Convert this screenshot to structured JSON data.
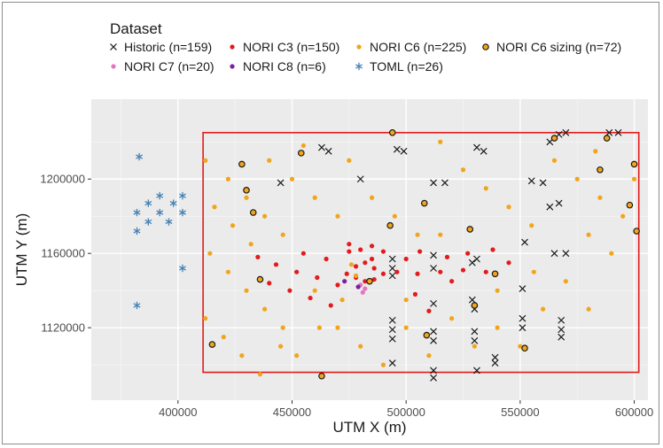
{
  "chart_data": {
    "type": "scatter",
    "legend_title": "Dataset",
    "legend_position": "top",
    "xlabel": "UTM X (m)",
    "ylabel": "UTM Y (m)",
    "xlim": [
      362000,
      606000
    ],
    "ylim": [
      1081000,
      1243000
    ],
    "x_ticks": [
      400000,
      450000,
      500000,
      550000,
      600000
    ],
    "y_ticks": [
      1120000,
      1160000,
      1200000
    ],
    "x_tick_labels": [
      "400000",
      "450000",
      "500000",
      "550000",
      "600000"
    ],
    "y_tick_labels": [
      "1120000",
      "1160000",
      "1200000"
    ],
    "grid": true,
    "boundary_rect": {
      "x": [
        411000,
        602000
      ],
      "y": [
        1096000,
        1225000
      ],
      "color": "#e41a1c"
    },
    "series": [
      {
        "name": "Historic (n=159)",
        "marker": "x",
        "color": "#1a1a1a",
        "points": [
          [
            480000,
            1200000
          ],
          [
            496000,
            1216000
          ],
          [
            499000,
            1215000
          ],
          [
            531000,
            1217000
          ],
          [
            534000,
            1215000
          ],
          [
            512000,
            1198000
          ],
          [
            517000,
            1198000
          ],
          [
            555000,
            1199000
          ],
          [
            560000,
            1198000
          ],
          [
            445000,
            1198000
          ],
          [
            463000,
            1217000
          ],
          [
            466000,
            1215000
          ],
          [
            563000,
            1220000
          ],
          [
            567000,
            1224000
          ],
          [
            570000,
            1225000
          ],
          [
            589000,
            1225000
          ],
          [
            593000,
            1225000
          ],
          [
            563000,
            1185000
          ],
          [
            567000,
            1187000
          ],
          [
            565000,
            1160000
          ],
          [
            570000,
            1160000
          ],
          [
            552000,
            1166000
          ],
          [
            551000,
            1141000
          ],
          [
            551000,
            1125000
          ],
          [
            551000,
            1120000
          ],
          [
            568000,
            1124000
          ],
          [
            568000,
            1119000
          ],
          [
            568000,
            1115000
          ],
          [
            531000,
            1157000
          ],
          [
            529000,
            1155000
          ],
          [
            529000,
            1135000
          ],
          [
            530000,
            1130000
          ],
          [
            530000,
            1118000
          ],
          [
            530000,
            1113000
          ],
          [
            539000,
            1104000
          ],
          [
            539000,
            1101000
          ],
          [
            531000,
            1097000
          ],
          [
            512000,
            1159000
          ],
          [
            512000,
            1152000
          ],
          [
            512000,
            1133000
          ],
          [
            512000,
            1118000
          ],
          [
            512000,
            1113000
          ],
          [
            512000,
            1097000
          ],
          [
            512000,
            1093000
          ],
          [
            494000,
            1157000
          ],
          [
            494000,
            1152000
          ],
          [
            494000,
            1148000
          ],
          [
            494000,
            1124000
          ],
          [
            494000,
            1119000
          ],
          [
            494000,
            1114000
          ],
          [
            494000,
            1101000
          ]
        ]
      },
      {
        "name": "NORI C3 (n=150)",
        "marker": "dot",
        "color": "#e41a1c",
        "points": [
          [
            435000,
            1158000
          ],
          [
            443000,
            1154000
          ],
          [
            452000,
            1150000
          ],
          [
            461000,
            1147000
          ],
          [
            470000,
            1143000
          ],
          [
            440000,
            1144000
          ],
          [
            449000,
            1140000
          ],
          [
            458000,
            1136000
          ],
          [
            467000,
            1132000
          ],
          [
            455000,
            1160000
          ],
          [
            465000,
            1157000
          ],
          [
            475000,
            1161000
          ],
          [
            485000,
            1157000
          ],
          [
            490000,
            1161000
          ],
          [
            500000,
            1157000
          ],
          [
            506000,
            1161000
          ],
          [
            518000,
            1158000
          ],
          [
            527000,
            1160000
          ],
          [
            538000,
            1162000
          ],
          [
            545000,
            1155000
          ],
          [
            535000,
            1150000
          ],
          [
            525000,
            1151000
          ],
          [
            515000,
            1150000
          ],
          [
            505000,
            1149000
          ],
          [
            496000,
            1150000
          ],
          [
            504000,
            1138000
          ],
          [
            510000,
            1129000
          ],
          [
            520000,
            1145000
          ],
          [
            475000,
            1165000
          ],
          [
            480000,
            1162000
          ],
          [
            485000,
            1164000
          ],
          [
            478000,
            1153000
          ],
          [
            482000,
            1155000
          ],
          [
            486000,
            1152000
          ],
          [
            474000,
            1149000
          ],
          [
            478000,
            1147000
          ],
          [
            482000,
            1145000
          ],
          [
            486000,
            1146000
          ],
          [
            490000,
            1149000
          ]
        ]
      },
      {
        "name": "NORI C6 (n=225)",
        "marker": "dot",
        "color": "#f2a51a",
        "points": [
          [
            412000,
            1210000
          ],
          [
            422000,
            1200000
          ],
          [
            430000,
            1190000
          ],
          [
            438000,
            1180000
          ],
          [
            446000,
            1170000
          ],
          [
            416000,
            1185000
          ],
          [
            424000,
            1175000
          ],
          [
            432000,
            1165000
          ],
          [
            414000,
            1160000
          ],
          [
            422000,
            1150000
          ],
          [
            430000,
            1140000
          ],
          [
            438000,
            1130000
          ],
          [
            446000,
            1120000
          ],
          [
            412000,
            1125000
          ],
          [
            420000,
            1115000
          ],
          [
            428000,
            1105000
          ],
          [
            436000,
            1095000
          ],
          [
            440000,
            1210000
          ],
          [
            450000,
            1200000
          ],
          [
            460000,
            1190000
          ],
          [
            470000,
            1180000
          ],
          [
            455000,
            1218000
          ],
          [
            475000,
            1210000
          ],
          [
            485000,
            1190000
          ],
          [
            495000,
            1180000
          ],
          [
            505000,
            1170000
          ],
          [
            515000,
            1220000
          ],
          [
            525000,
            1205000
          ],
          [
            535000,
            1195000
          ],
          [
            545000,
            1185000
          ],
          [
            555000,
            1175000
          ],
          [
            565000,
            1210000
          ],
          [
            575000,
            1200000
          ],
          [
            585000,
            1190000
          ],
          [
            595000,
            1180000
          ],
          [
            580000,
            1170000
          ],
          [
            590000,
            1160000
          ],
          [
            600000,
            1200000
          ],
          [
            470000,
            1120000
          ],
          [
            480000,
            1110000
          ],
          [
            490000,
            1100000
          ],
          [
            500000,
            1120000
          ],
          [
            510000,
            1105000
          ],
          [
            520000,
            1125000
          ],
          [
            530000,
            1110000
          ],
          [
            540000,
            1120000
          ],
          [
            550000,
            1110000
          ],
          [
            560000,
            1130000
          ],
          [
            570000,
            1145000
          ],
          [
            580000,
            1130000
          ],
          [
            452000,
            1105000
          ],
          [
            462000,
            1120000
          ],
          [
            472000,
            1135000
          ],
          [
            500000,
            1135000
          ],
          [
            515000,
            1170000
          ],
          [
            540000,
            1140000
          ],
          [
            556000,
            1150000
          ],
          [
            460000,
            1140000
          ],
          [
            445000,
            1110000
          ],
          [
            583000,
            1215000
          ],
          [
            476000,
            1154000
          ],
          [
            478000,
            1148000
          ]
        ]
      },
      {
        "name": "NORI C6 sizing (n=72)",
        "marker": "ring",
        "color": "#1a1a1a",
        "fill": "#f2a51a",
        "points": [
          [
            428000,
            1208000
          ],
          [
            430000,
            1194000
          ],
          [
            433000,
            1182000
          ],
          [
            436000,
            1146000
          ],
          [
            415000,
            1111000
          ],
          [
            463000,
            1094000
          ],
          [
            454000,
            1214000
          ],
          [
            494000,
            1225000
          ],
          [
            508000,
            1187000
          ],
          [
            528000,
            1173000
          ],
          [
            565000,
            1222000
          ],
          [
            588000,
            1222000
          ],
          [
            600000,
            1208000
          ],
          [
            585000,
            1205000
          ],
          [
            598000,
            1186000
          ],
          [
            601000,
            1172000
          ],
          [
            493000,
            1175000
          ],
          [
            509000,
            1116000
          ],
          [
            539000,
            1149000
          ],
          [
            552000,
            1109000
          ],
          [
            484000,
            1145000
          ],
          [
            530000,
            1132000
          ]
        ]
      },
      {
        "name": "NORI C7 (n=20)",
        "marker": "dot",
        "color": "#e377c2",
        "points": [
          [
            480000,
            1143000
          ],
          [
            482000,
            1141000
          ],
          [
            481000,
            1139000
          ]
        ]
      },
      {
        "name": "NORI C8 (n=6)",
        "marker": "dot",
        "color": "#7b1fa2",
        "points": [
          [
            473000,
            1145000
          ],
          [
            479000,
            1142000
          ]
        ]
      },
      {
        "name": "TOML (n=26)",
        "marker": "asterisk",
        "color": "#4682b4",
        "points": [
          [
            383000,
            1212000
          ],
          [
            387000,
            1187000
          ],
          [
            392000,
            1191000
          ],
          [
            398000,
            1187000
          ],
          [
            402000,
            1191000
          ],
          [
            382000,
            1182000
          ],
          [
            392000,
            1182000
          ],
          [
            402000,
            1182000
          ],
          [
            387000,
            1177000
          ],
          [
            396000,
            1177000
          ],
          [
            382000,
            1172000
          ],
          [
            402000,
            1152000
          ],
          [
            382000,
            1132000
          ]
        ]
      }
    ]
  }
}
